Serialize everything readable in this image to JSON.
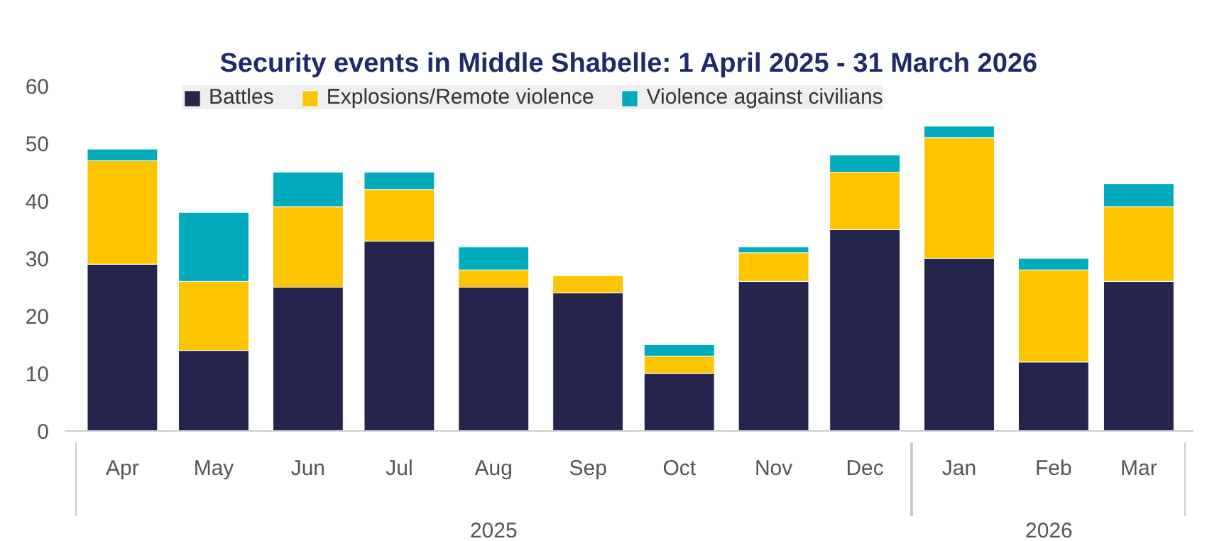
{
  "chart_data": {
    "type": "bar",
    "title": "Security events in Middle Shabelle: 1 April 2025 - 31 March 2026",
    "x": [
      "2025-04",
      "2025-05",
      "2025-06",
      "2025-07",
      "2025-08",
      "2025-09",
      "2025-10",
      "2025-11",
      "2025-12",
      "2026-01",
      "2026-02",
      "2026-03"
    ],
    "xlim": [
      "2025-03-13",
      "2026-03-19"
    ],
    "xticks": [
      {
        "value": "2025-04",
        "label": "Apr"
      },
      {
        "value": "2025-05",
        "label": "May"
      },
      {
        "value": "2025-06",
        "label": "Jun"
      },
      {
        "value": "2025-07",
        "label": "Jul"
      },
      {
        "value": "2025-08",
        "label": "Aug"
      },
      {
        "value": "2025-09",
        "label": "Sep"
      },
      {
        "value": "2025-10",
        "label": "Oct"
      },
      {
        "value": "2025-11",
        "label": "Nov"
      },
      {
        "value": "2025-12",
        "label": "Dec"
      },
      {
        "value": "2026-01",
        "label": "Jan"
      },
      {
        "value": "2026-02",
        "label": "Feb"
      },
      {
        "value": "2026-03",
        "label": "Mar"
      }
    ],
    "stacked": true,
    "legend": "top",
    "grid": false,
    "ylim": [
      0,
      60
    ],
    "yticks": [
      0,
      10,
      20,
      30,
      40,
      50,
      60
    ],
    "annotations": [
      "2025",
      "2026"
    ],
    "series": [
      {
        "name": "Battles",
        "color": "#24244c",
        "values": [
          29,
          14,
          25,
          33,
          25,
          24,
          10,
          26,
          35,
          30,
          12,
          26
        ]
      },
      {
        "name": "Explosions/Remote violence",
        "color": "#fcc500",
        "values": [
          18,
          12,
          14,
          9,
          3,
          3,
          3,
          5,
          10,
          21,
          16,
          13
        ]
      },
      {
        "name": "Violence against civilians",
        "color": "#00abbd",
        "values": [
          2,
          12,
          6,
          3,
          4,
          null,
          2,
          1,
          3,
          2,
          2,
          4
        ]
      }
    ]
  }
}
